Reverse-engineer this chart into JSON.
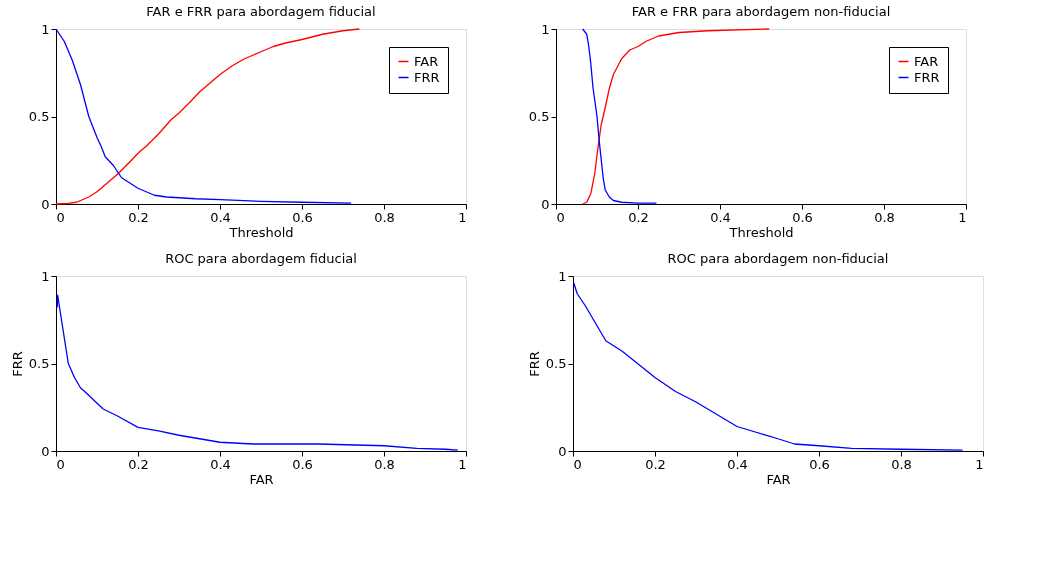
{
  "chart_data": [
    {
      "type": "line",
      "title": "FAR e FRR para abordagem fiducial",
      "xlabel": "Threshold",
      "xlim": [
        0,
        1
      ],
      "ylim": [
        0,
        1
      ],
      "xticks": [
        0,
        0.2,
        0.4,
        0.6,
        0.8,
        1
      ],
      "yticks": [
        0,
        0.5,
        1
      ],
      "grid": false,
      "legend": "top right",
      "line_style": "solid",
      "series": [
        {
          "name": "FAR",
          "color": "#ff0000",
          "x": [
            0,
            0.03,
            0.05,
            0.08,
            0.1,
            0.12,
            0.15,
            0.18,
            0.2,
            0.22,
            0.25,
            0.28,
            0.3,
            0.33,
            0.35,
            0.38,
            0.4,
            0.43,
            0.46,
            0.5,
            0.53,
            0.56,
            0.6,
            0.65,
            0.7,
            0.74
          ],
          "values": [
            0,
            0.003,
            0.01,
            0.04,
            0.07,
            0.11,
            0.17,
            0.24,
            0.29,
            0.33,
            0.4,
            0.48,
            0.52,
            0.59,
            0.64,
            0.7,
            0.74,
            0.79,
            0.83,
            0.87,
            0.9,
            0.92,
            0.94,
            0.97,
            0.99,
            1
          ]
        },
        {
          "name": "FRR",
          "color": "#0000ff",
          "x": [
            0,
            0.02,
            0.04,
            0.06,
            0.08,
            0.1,
            0.11,
            0.12,
            0.14,
            0.16,
            0.18,
            0.2,
            0.24,
            0.27,
            0.34,
            0.4,
            0.5,
            0.6,
            0.72
          ],
          "values": [
            1,
            0.93,
            0.82,
            0.68,
            0.5,
            0.38,
            0.33,
            0.27,
            0.22,
            0.15,
            0.12,
            0.09,
            0.05,
            0.04,
            0.03,
            0.025,
            0.015,
            0.01,
            0.005
          ]
        }
      ]
    },
    {
      "type": "line",
      "title": "FAR e FRR para abordagem non-fiducial",
      "xlabel": "Threshold",
      "xlim": [
        0,
        1
      ],
      "ylim": [
        0,
        1
      ],
      "xticks": [
        0,
        0.2,
        0.4,
        0.6,
        0.8,
        1
      ],
      "yticks": [
        0,
        0.5,
        1
      ],
      "grid": false,
      "legend": "top right",
      "line_style": "solid",
      "series": [
        {
          "name": "FAR",
          "color": "#ff0000",
          "x": [
            0.065,
            0.075,
            0.085,
            0.095,
            0.1,
            0.11,
            0.12,
            0.13,
            0.14,
            0.16,
            0.18,
            0.2,
            0.22,
            0.25,
            0.3,
            0.37,
            0.52
          ],
          "values": [
            0,
            0.01,
            0.06,
            0.18,
            0.28,
            0.45,
            0.55,
            0.66,
            0.74,
            0.83,
            0.88,
            0.9,
            0.93,
            0.96,
            0.98,
            0.99,
            1
          ]
        },
        {
          "name": "FRR",
          "color": "#0000ff",
          "x": [
            0.065,
            0.075,
            0.08,
            0.085,
            0.09,
            0.1,
            0.105,
            0.11,
            0.115,
            0.12,
            0.13,
            0.14,
            0.16,
            0.2,
            0.245
          ],
          "values": [
            1,
            0.97,
            0.9,
            0.8,
            0.67,
            0.5,
            0.37,
            0.26,
            0.15,
            0.08,
            0.04,
            0.02,
            0.01,
            0.005,
            0.005
          ]
        }
      ]
    },
    {
      "type": "line",
      "title": "ROC para abordagem fiducial",
      "xlabel": "FAR",
      "ylabel": "FRR",
      "xlim": [
        0,
        1
      ],
      "ylim": [
        0,
        1
      ],
      "xticks": [
        0,
        0.2,
        0.4,
        0.6,
        0.8,
        1
      ],
      "yticks": [
        0,
        0.5,
        1
      ],
      "grid": false,
      "line_style": "solid",
      "series": [
        {
          "color": "#0000ff",
          "x": [
            0.003,
            0.004,
            0.01,
            0.02,
            0.03,
            0.045,
            0.06,
            0.07,
            0.115,
            0.15,
            0.2,
            0.25,
            0.3,
            0.35,
            0.4,
            0.48,
            0.64,
            0.8,
            0.88,
            0.95,
            0.98
          ],
          "values": [
            0.82,
            0.89,
            0.8,
            0.65,
            0.5,
            0.42,
            0.36,
            0.34,
            0.24,
            0.2,
            0.135,
            0.115,
            0.09,
            0.07,
            0.05,
            0.04,
            0.04,
            0.03,
            0.015,
            0.01,
            0.005
          ]
        }
      ]
    },
    {
      "type": "line",
      "title": "ROC para abordagem non-fiducial",
      "xlabel": "FAR",
      "ylabel": "FRR",
      "xlim": [
        0,
        1
      ],
      "ylim": [
        0,
        1
      ],
      "xticks": [
        0,
        0.2,
        0.4,
        0.6,
        0.8,
        1
      ],
      "yticks": [
        0,
        0.5,
        1
      ],
      "grid": false,
      "line_style": "solid",
      "series": [
        {
          "color": "#0000ff",
          "x": [
            0.002,
            0.01,
            0.03,
            0.05,
            0.08,
            0.12,
            0.2,
            0.25,
            0.3,
            0.4,
            0.5,
            0.54,
            0.6,
            0.68,
            0.8,
            0.95
          ],
          "values": [
            0.96,
            0.9,
            0.83,
            0.75,
            0.63,
            0.57,
            0.42,
            0.34,
            0.28,
            0.14,
            0.07,
            0.04,
            0.03,
            0.015,
            0.01,
            0.005
          ]
        }
      ]
    }
  ]
}
